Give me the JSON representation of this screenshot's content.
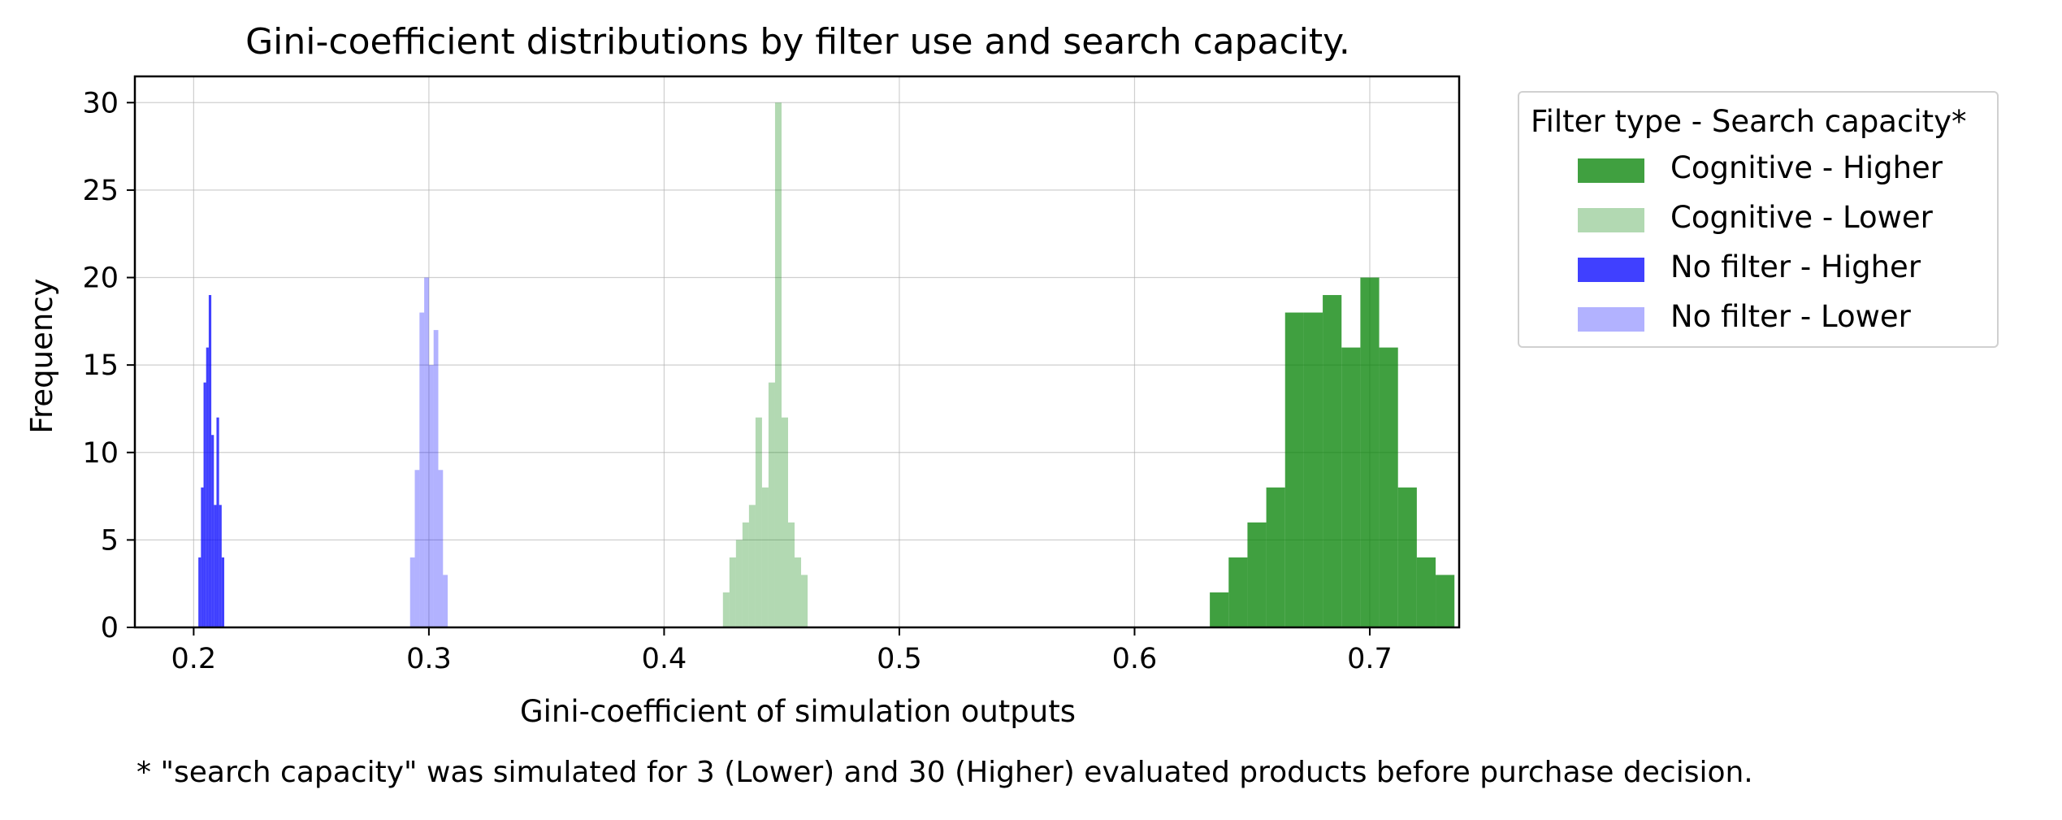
{
  "chart_data": {
    "type": "histogram",
    "title": "Gini-coefficient distributions by filter use and search capacity.",
    "xlabel": "Gini-coefficient of simulation outputs",
    "ylabel": "Frequency",
    "xlim": [
      0.175,
      0.738
    ],
    "ylim": [
      0,
      31.5
    ],
    "xticks": [
      "0.2",
      "0.3",
      "0.4",
      "0.5",
      "0.6",
      "0.7"
    ],
    "yticks": [
      "0",
      "5",
      "10",
      "15",
      "20",
      "25",
      "30"
    ],
    "grid": true,
    "legend": {
      "title": "Filter type - Search capacity*",
      "placement": "outside-right"
    },
    "series": [
      {
        "name": "Cognitive - Higher",
        "color": "#008000",
        "opacity": 0.75,
        "x_start": 0.632,
        "bin_width": 0.008,
        "values": [
          2,
          4,
          6,
          8,
          18,
          18,
          19,
          16,
          20,
          16,
          8,
          4,
          3
        ]
      },
      {
        "name": "Cognitive - Lower",
        "color": "#008000",
        "opacity": 0.3,
        "x_start": 0.425,
        "bin_width": 0.00277,
        "values": [
          2,
          4,
          5,
          6,
          7,
          12,
          8,
          14,
          30,
          12,
          6,
          4,
          3
        ]
      },
      {
        "name": "No filter - Higher",
        "color": "#0000ff",
        "opacity": 0.75,
        "x_start": 0.202,
        "bin_width": 0.0011,
        "values": [
          4,
          8,
          14,
          16,
          19,
          11,
          7,
          12,
          7,
          4
        ]
      },
      {
        "name": "No filter - Lower",
        "color": "#0000ff",
        "opacity": 0.3,
        "x_start": 0.292,
        "bin_width": 0.002,
        "values": [
          4,
          9,
          18,
          20,
          15,
          17,
          9,
          3
        ]
      }
    ]
  },
  "footnote": "* \"search capacity\" was simulated for 3 (Lower) and 30 (Higher) evaluated products before purchase decision."
}
